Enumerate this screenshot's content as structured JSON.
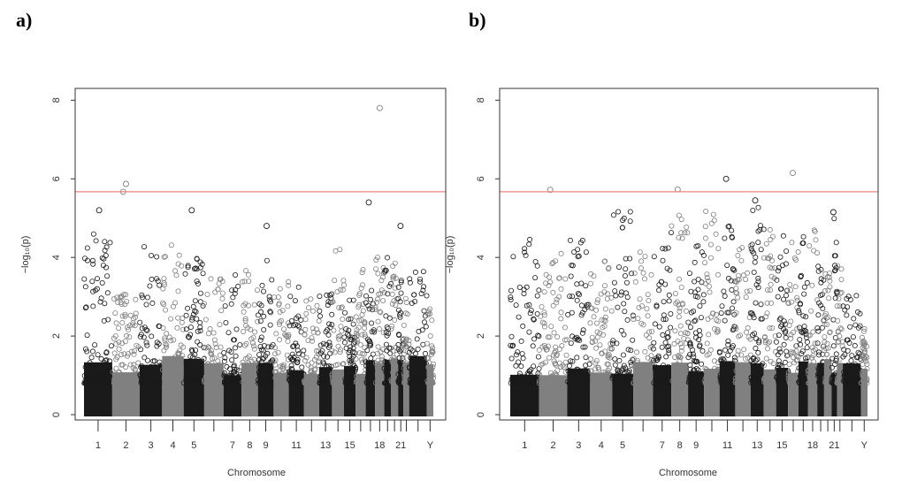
{
  "chart_data": [
    {
      "type": "scatter",
      "panel_label": "a)",
      "xlabel": "Chromosome",
      "ylabel": "−log₁₀(p)",
      "ylim": [
        0,
        8.3
      ],
      "yticks": [
        "0",
        "2",
        "4",
        "6",
        "8"
      ],
      "threshold": 5.67,
      "threshold_color": "#f08080",
      "x_tick_labels": [
        "1",
        "2",
        "3",
        "4",
        "5",
        "7",
        "8",
        "9",
        "11",
        "13",
        "15",
        "18",
        "21",
        "Y"
      ],
      "chromosome_colors": [
        "#1a1a1a",
        "#808080"
      ],
      "chromosome_peaks": [
        4.6,
        3.1,
        4.3,
        4.4,
        4.1,
        3.5,
        3.6,
        3.9,
        4.0,
        3.4,
        3.3,
        3.0,
        3.1,
        4.6,
        3.1,
        3.7,
        3.2,
        4.2,
        4.6,
        3.9,
        3.5,
        3.1,
        3.8,
        2.9
      ],
      "highlighted_points": [
        {
          "chromosome": "1",
          "value": 5.2
        },
        {
          "chromosome": "2",
          "value": 5.67
        },
        {
          "chromosome": "2",
          "value": 5.87
        },
        {
          "chromosome": "5",
          "value": 5.2
        },
        {
          "chromosome": "9",
          "value": 4.8
        },
        {
          "chromosome": "17",
          "value": 5.4
        },
        {
          "chromosome": "18",
          "value": 7.8
        },
        {
          "chromosome": "21",
          "value": 4.8
        }
      ]
    },
    {
      "type": "scatter",
      "panel_label": "b)",
      "xlabel": "Chromosome",
      "ylabel": "−log₁₀(p)",
      "ylim": [
        0,
        8.3
      ],
      "yticks": [
        "0",
        "2",
        "4",
        "6",
        "8"
      ],
      "threshold": 5.67,
      "threshold_color": "#f08080",
      "x_tick_labels": [
        "1",
        "2",
        "3",
        "4",
        "5",
        "7",
        "8",
        "9",
        "11",
        "13",
        "15",
        "18",
        "21",
        "Y"
      ],
      "chromosome_colors": [
        "#1a1a1a",
        "#808080"
      ],
      "chromosome_peaks": [
        4.5,
        4.2,
        4.5,
        4.0,
        5.2,
        4.2,
        4.7,
        5.3,
        4.7,
        5.2,
        4.8,
        5.0,
        5.4,
        4.9,
        5.0,
        4.4,
        4.8,
        4.8,
        4.3,
        4.1,
        5.2,
        3.9,
        3.2,
        2.2
      ],
      "highlighted_points": [
        {
          "chromosome": "2",
          "value": 5.72
        },
        {
          "chromosome": "8",
          "value": 5.73
        },
        {
          "chromosome": "11",
          "value": 6.0
        },
        {
          "chromosome": "16",
          "value": 6.15
        },
        {
          "chromosome": "13",
          "value": 5.45
        },
        {
          "chromosome": "21",
          "value": 5.15
        }
      ]
    }
  ]
}
